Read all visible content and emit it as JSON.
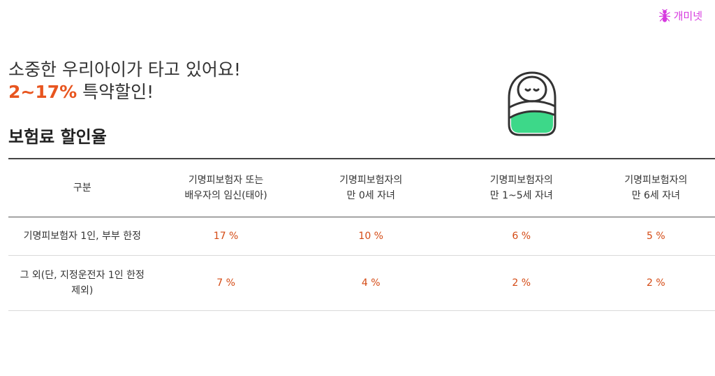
{
  "watermark": {
    "text": "개미넷",
    "icon": "ant-icon",
    "color": "#d63adf"
  },
  "headline": {
    "line1": "소중한 우리아이가 타고 있어요!",
    "accent": "2~17%",
    "line2_rest": " 특약할인!"
  },
  "illustration": {
    "icon": "swaddled-baby-icon",
    "accent_color": "#3dd889"
  },
  "section_title": "보험료 할인율",
  "table": {
    "headers": [
      "구분",
      "기명피보험자 또는\n배우자의 임신(태아)",
      "기명피보험자의\n만 0세 자녀",
      "기명피보험자의\n만 1~5세 자녀",
      "기명피보험자의\n만 6세 자녀"
    ],
    "rows": [
      {
        "label": "기명피보험자 1인, 부부 한정",
        "values": [
          "17 %",
          "10 %",
          "6 %",
          "5 %"
        ]
      },
      {
        "label": "그 외(단, 지정운전자 1인 한정\n제외)",
        "values": [
          "7 %",
          "4 %",
          "2 %",
          "2 %"
        ]
      }
    ],
    "value_color": "#d44a14"
  },
  "colors": {
    "accent": "#e8551f",
    "text": "#333333"
  }
}
